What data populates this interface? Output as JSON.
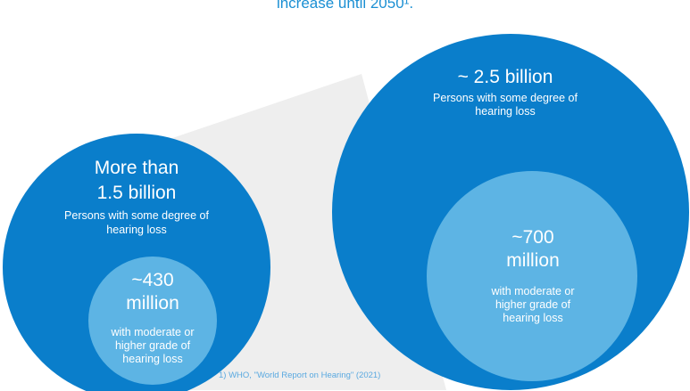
{
  "header": {
    "line": "increase until 2050¹."
  },
  "left_circle": {
    "heading_line1": "More than",
    "heading_line2": "1.5 billion",
    "desc_line1": "Persons with some degree of",
    "desc_line2": "hearing loss"
  },
  "left_inner": {
    "value_line1": "~430",
    "value_line2": "million",
    "desc_line1": "with moderate or",
    "desc_line2": "higher grade of",
    "desc_line3": "hearing loss"
  },
  "right_circle": {
    "heading": "~ 2.5 billion",
    "desc_line1": "Persons with some degree of",
    "desc_line2": "hearing loss"
  },
  "right_inner": {
    "value_line1": "~700",
    "value_line2": "million",
    "desc_line1": "with moderate or",
    "desc_line2": "higher grade of",
    "desc_line3": "hearing loss"
  },
  "source": "1) WHO, \"World Report on Hearing\" (2021)",
  "colors": {
    "outer_circle": "#0a7ecb",
    "inner_circle": "#5db4e4",
    "connector": "#eeeeee",
    "header_text": "#1a8fd3"
  }
}
